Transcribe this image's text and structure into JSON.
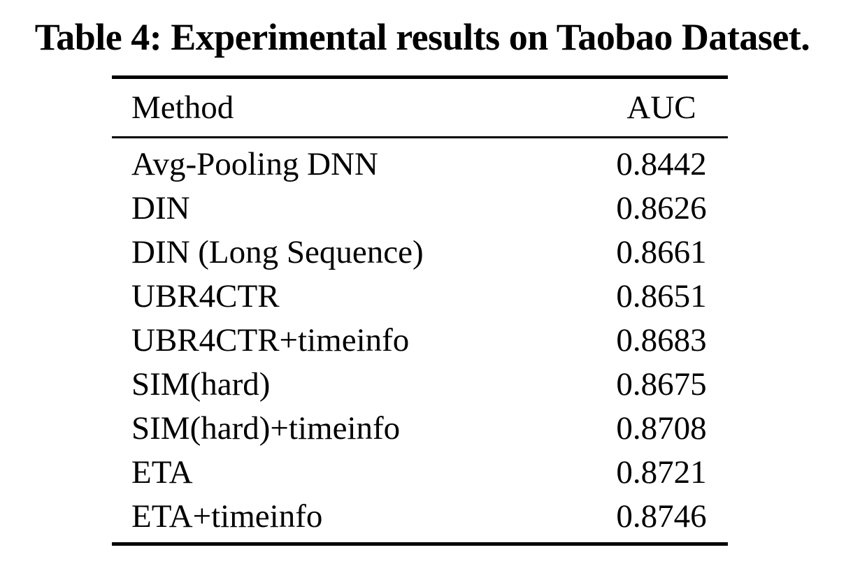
{
  "caption": "Table 4: Experimental results on Taobao Dataset.",
  "table": {
    "columns": [
      "Method",
      "AUC"
    ],
    "rows": [
      {
        "method": "Avg-Pooling DNN",
        "auc": "0.8442"
      },
      {
        "method": "DIN",
        "auc": "0.8626"
      },
      {
        "method": "DIN (Long Sequence)",
        "auc": "0.8661"
      },
      {
        "method": "UBR4CTR",
        "auc": "0.8651"
      },
      {
        "method": "UBR4CTR+timeinfo",
        "auc": "0.8683"
      },
      {
        "method": "SIM(hard)",
        "auc": "0.8675"
      },
      {
        "method": "SIM(hard)+timeinfo",
        "auc": "0.8708"
      },
      {
        "method": "ETA",
        "auc": "0.8721"
      },
      {
        "method": "ETA+timeinfo",
        "auc": "0.8746"
      }
    ]
  },
  "colors": {
    "text": "#000000",
    "background": "#ffffff"
  }
}
